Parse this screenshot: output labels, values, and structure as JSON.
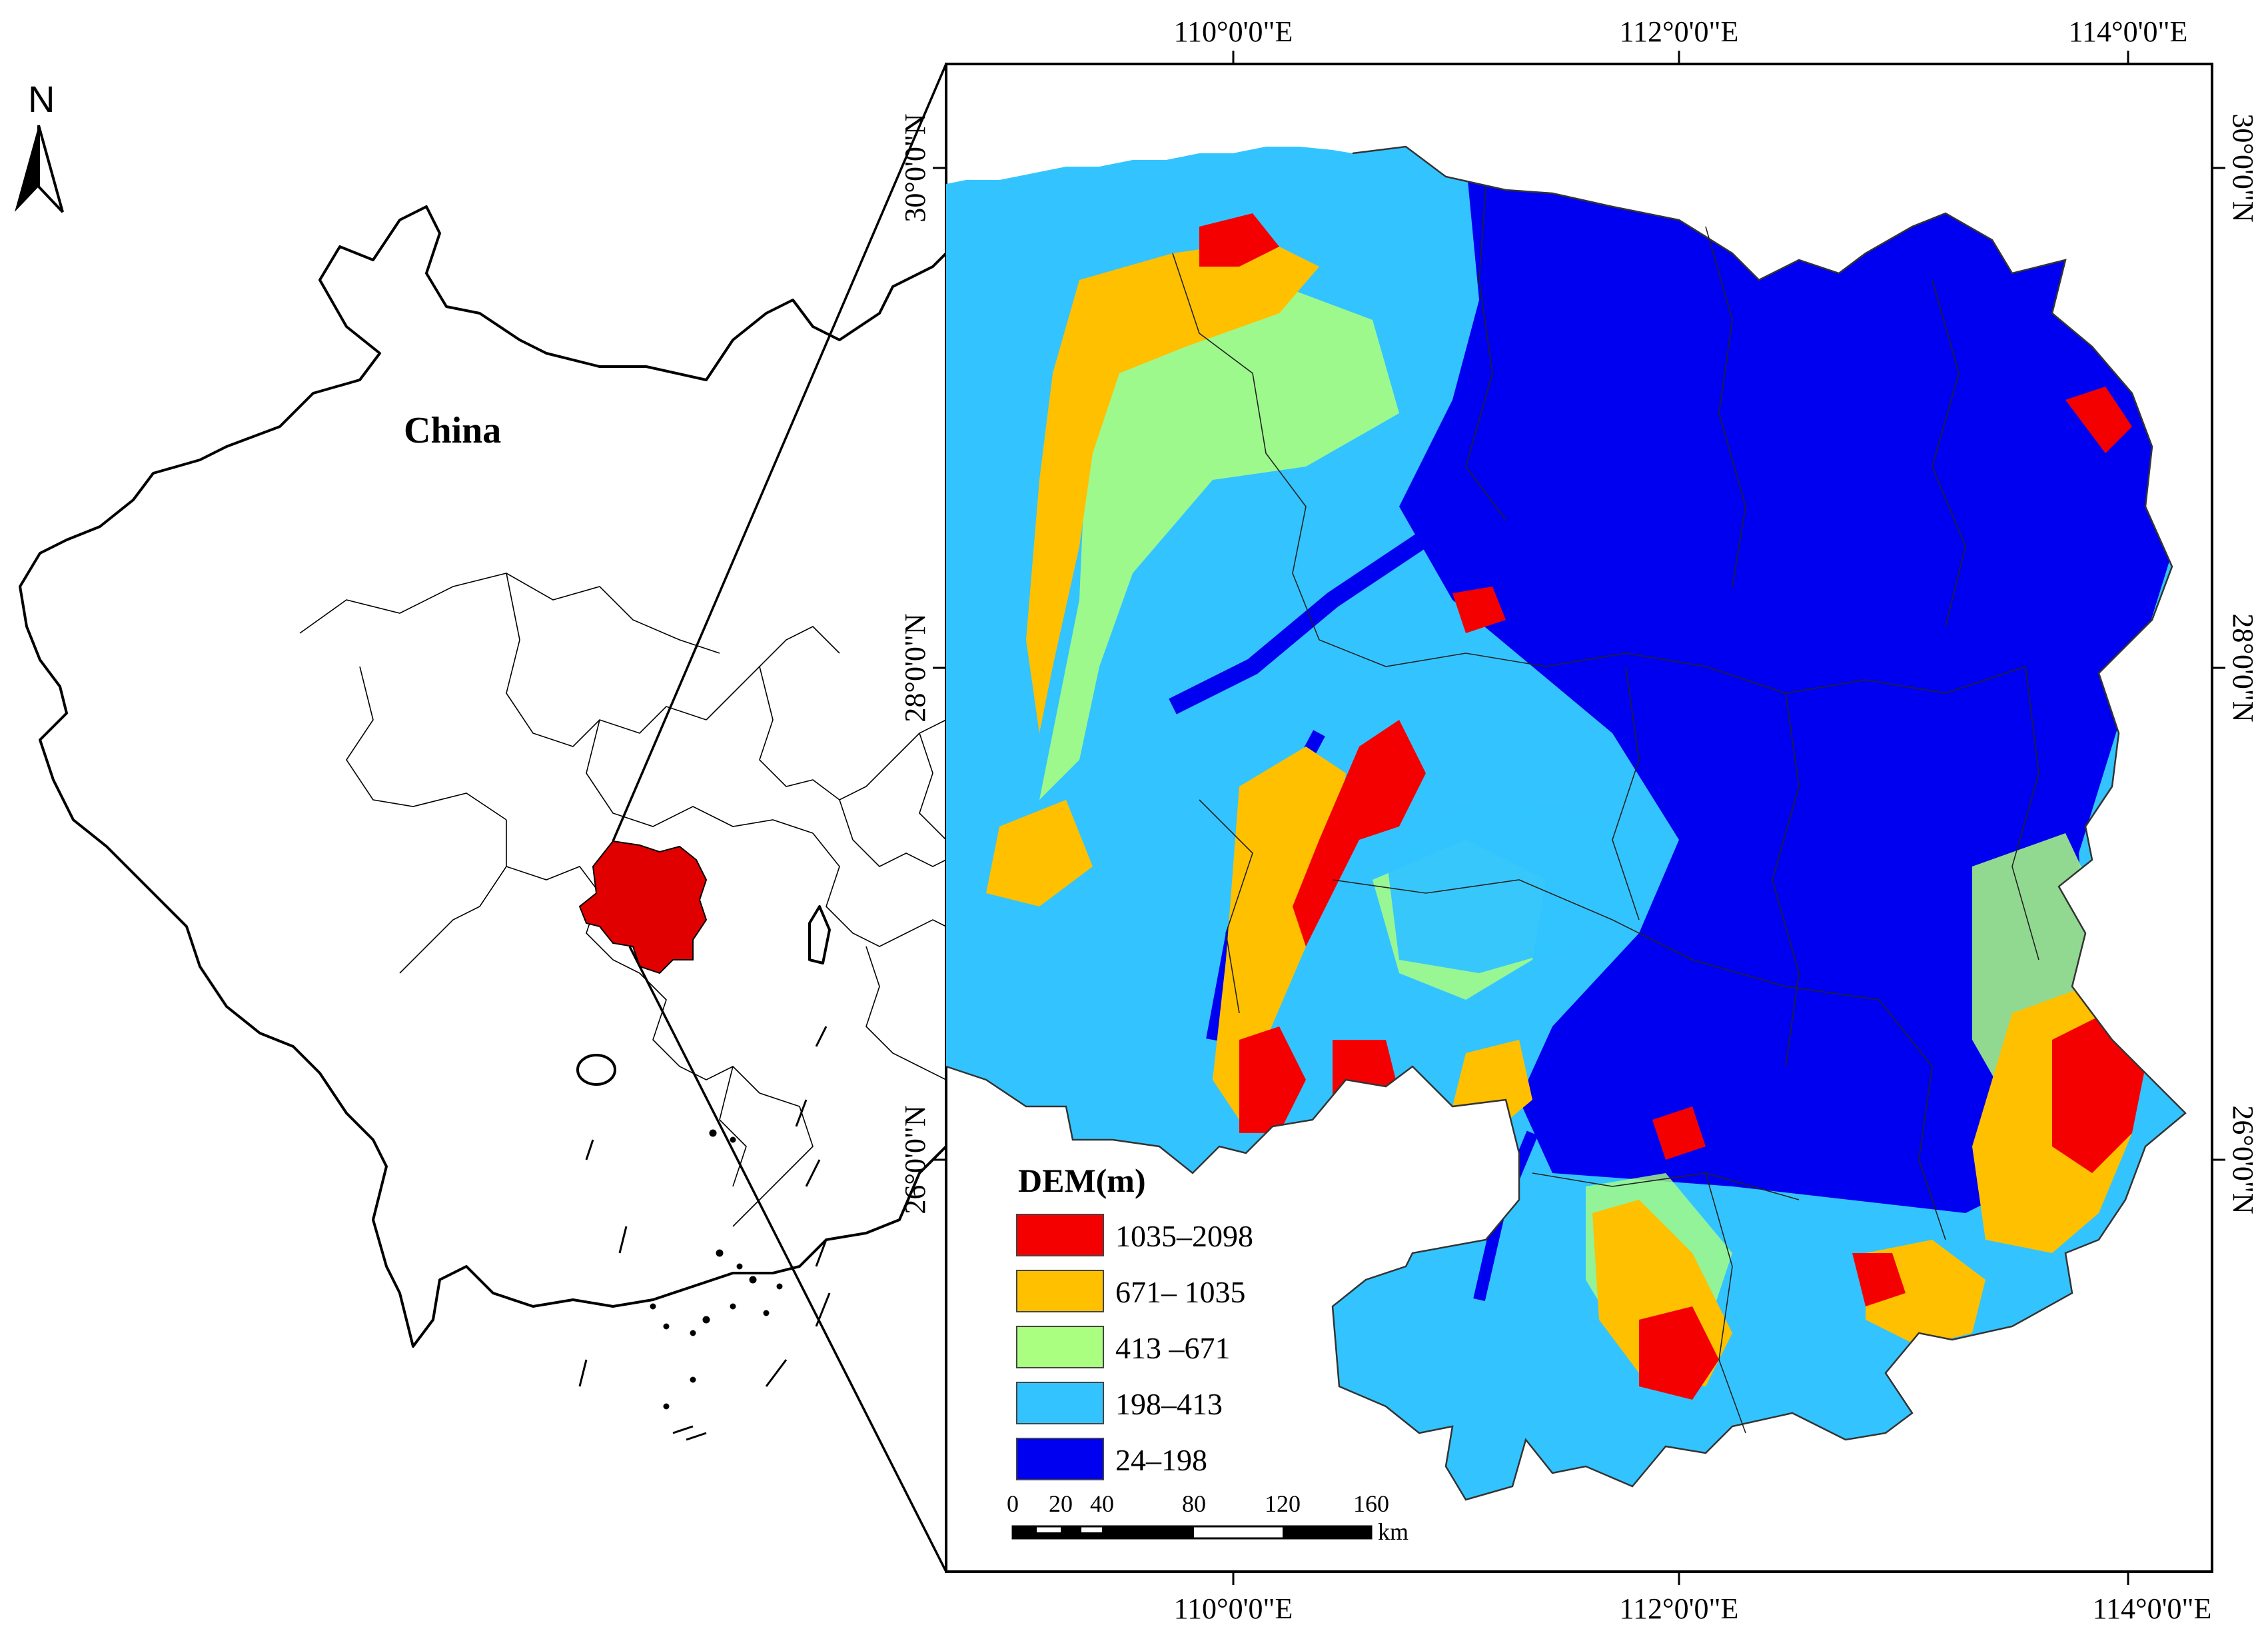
{
  "north_arrow": {
    "label": "N",
    "icon": "north-arrow-icon"
  },
  "overview_map": {
    "label": "China",
    "highlight_color": "#e00000",
    "icon": "china-outline-map"
  },
  "main_map": {
    "top_ticks": [
      "110°0'0\"E",
      "112°0'0\"E",
      "114°0'0\"E"
    ],
    "bottom_ticks": [
      "110°0'0\"E",
      "112°0'0\"E",
      "114°0'0\"E"
    ],
    "left_ticks": [
      "30°0'0\"N",
      "28°0'0\"N",
      "26°0'0\"N"
    ],
    "right_ticks": [
      "30°0'0\"N",
      "28°0'0\"N",
      "26°0'0\"N"
    ],
    "icon": "hunan-dem-map"
  },
  "legend": {
    "title": "DEM(m)",
    "items": [
      {
        "label": "1035–2098",
        "color": "#f50000"
      },
      {
        "label": "671– 1035",
        "color": "#ffc000"
      },
      {
        "label": "413 –671",
        "color": "#aaff80"
      },
      {
        "label": "198–413",
        "color": "#33c4ff"
      },
      {
        "label": "24–198",
        "color": "#0000f0"
      }
    ]
  },
  "scale_bar": {
    "ticks": [
      "0",
      "20",
      "40",
      "80",
      "120",
      "160"
    ],
    "unit": "km"
  }
}
